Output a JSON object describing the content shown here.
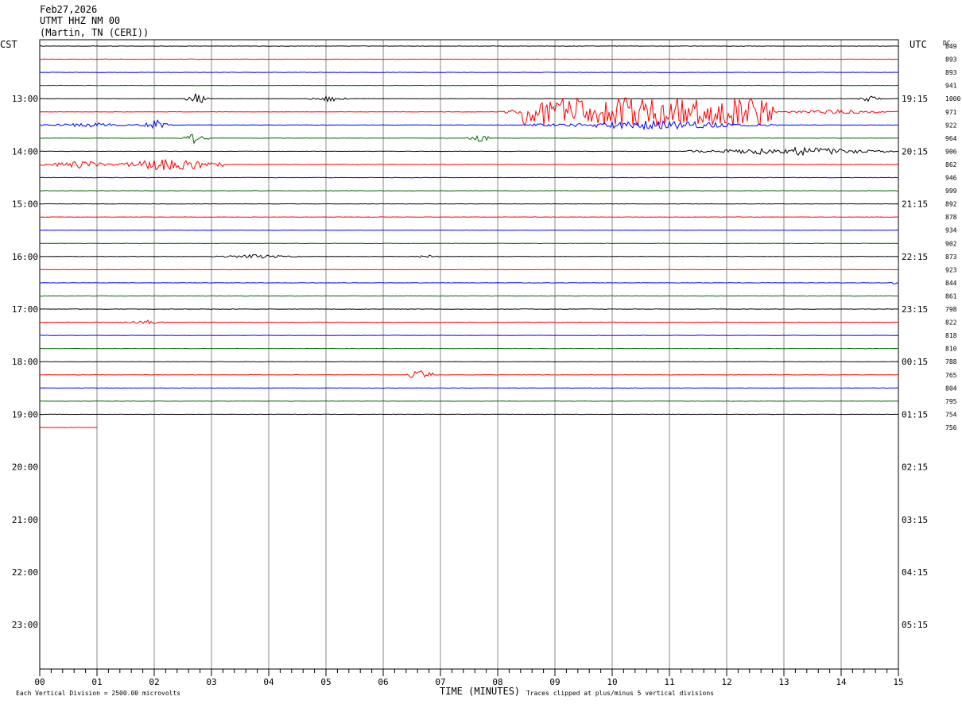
{
  "header": {
    "date": "Feb27,2026",
    "station": "UTMT HHZ NM 00",
    "location": "(Martin, TN (CERI))"
  },
  "chart_data": {
    "type": "helicorder",
    "x_axis": {
      "label": "TIME (MINUTES)",
      "range": [
        0,
        15
      ],
      "ticks": [
        "00",
        "01",
        "02",
        "03",
        "04",
        "05",
        "06",
        "07",
        "08",
        "09",
        "10",
        "11",
        "12",
        "13",
        "14",
        "15"
      ]
    },
    "left_axis": {
      "label": "CST",
      "ticks": [
        "13:00",
        "14:00",
        "15:00",
        "16:00",
        "17:00",
        "18:00",
        "19:00",
        "20:00",
        "21:00",
        "22:00",
        "23:00"
      ]
    },
    "right_axis": {
      "label": "UTC",
      "ticks": [
        "19:15",
        "20:15",
        "21:15",
        "22:15",
        "23:15",
        "00:15",
        "01:15",
        "02:15",
        "03:15",
        "04:15",
        "05:15"
      ]
    },
    "dc_label": "DC",
    "dc_offsets": [
      "849",
      "893",
      "893",
      "941",
      "1000",
      "971",
      "922",
      "964",
      "906",
      "862",
      "946",
      "999",
      "892",
      "878",
      "934",
      "902",
      "873",
      "923",
      "844",
      "861",
      "798",
      "822",
      "818",
      "810",
      "788",
      "765",
      "804",
      "795",
      "754",
      "756"
    ],
    "trace_colors": [
      "#000000",
      "#ff0000",
      "#0000ff",
      "#006400"
    ],
    "rows_per_hour": 4,
    "total_rows": 48,
    "rows_recorded": 30,
    "last_row_minutes": 1.0,
    "events": [
      {
        "row": 4,
        "start": 2.55,
        "end": 2.95,
        "amp": 0.9
      },
      {
        "row": 4,
        "start": 4.7,
        "end": 5.4,
        "amp": 0.4
      },
      {
        "row": 4,
        "start": 14.3,
        "end": 14.7,
        "amp": 0.45
      },
      {
        "row": 5,
        "start": 7.95,
        "end": 8.5,
        "amp": 0.3
      },
      {
        "row": 5,
        "start": 8.4,
        "end": 12.85,
        "amp": 1.8
      },
      {
        "row": 5,
        "start": 12.85,
        "end": 15.0,
        "amp": 0.3
      },
      {
        "row": 6,
        "start": 0.0,
        "end": 1.8,
        "amp": 0.3
      },
      {
        "row": 6,
        "start": 1.75,
        "end": 2.35,
        "amp": 0.8
      },
      {
        "row": 6,
        "start": 8.6,
        "end": 12.9,
        "amp": 0.6
      },
      {
        "row": 7,
        "start": 2.45,
        "end": 2.95,
        "amp": 0.7
      },
      {
        "row": 7,
        "start": 7.45,
        "end": 7.9,
        "amp": 0.6
      },
      {
        "row": 8,
        "start": 11.3,
        "end": 15.0,
        "amp": 0.55
      },
      {
        "row": 9,
        "start": 0.0,
        "end": 1.4,
        "amp": 0.5
      },
      {
        "row": 9,
        "start": 1.4,
        "end": 3.2,
        "amp": 1.0
      },
      {
        "row": 16,
        "start": 3.0,
        "end": 4.6,
        "amp": 0.25
      },
      {
        "row": 16,
        "start": 6.5,
        "end": 7.0,
        "amp": 0.25
      },
      {
        "row": 18,
        "start": 14.85,
        "end": 15.0,
        "amp": 0.3
      },
      {
        "row": 21,
        "start": 1.5,
        "end": 2.2,
        "amp": 0.3
      },
      {
        "row": 25,
        "start": 6.4,
        "end": 6.95,
        "amp": 1.0
      }
    ]
  },
  "footer": {
    "scale_note": "Each Vertical Division = 2500.00 microvolts",
    "clip_note": "Traces clipped at plus/minus 5 vertical divisions"
  }
}
